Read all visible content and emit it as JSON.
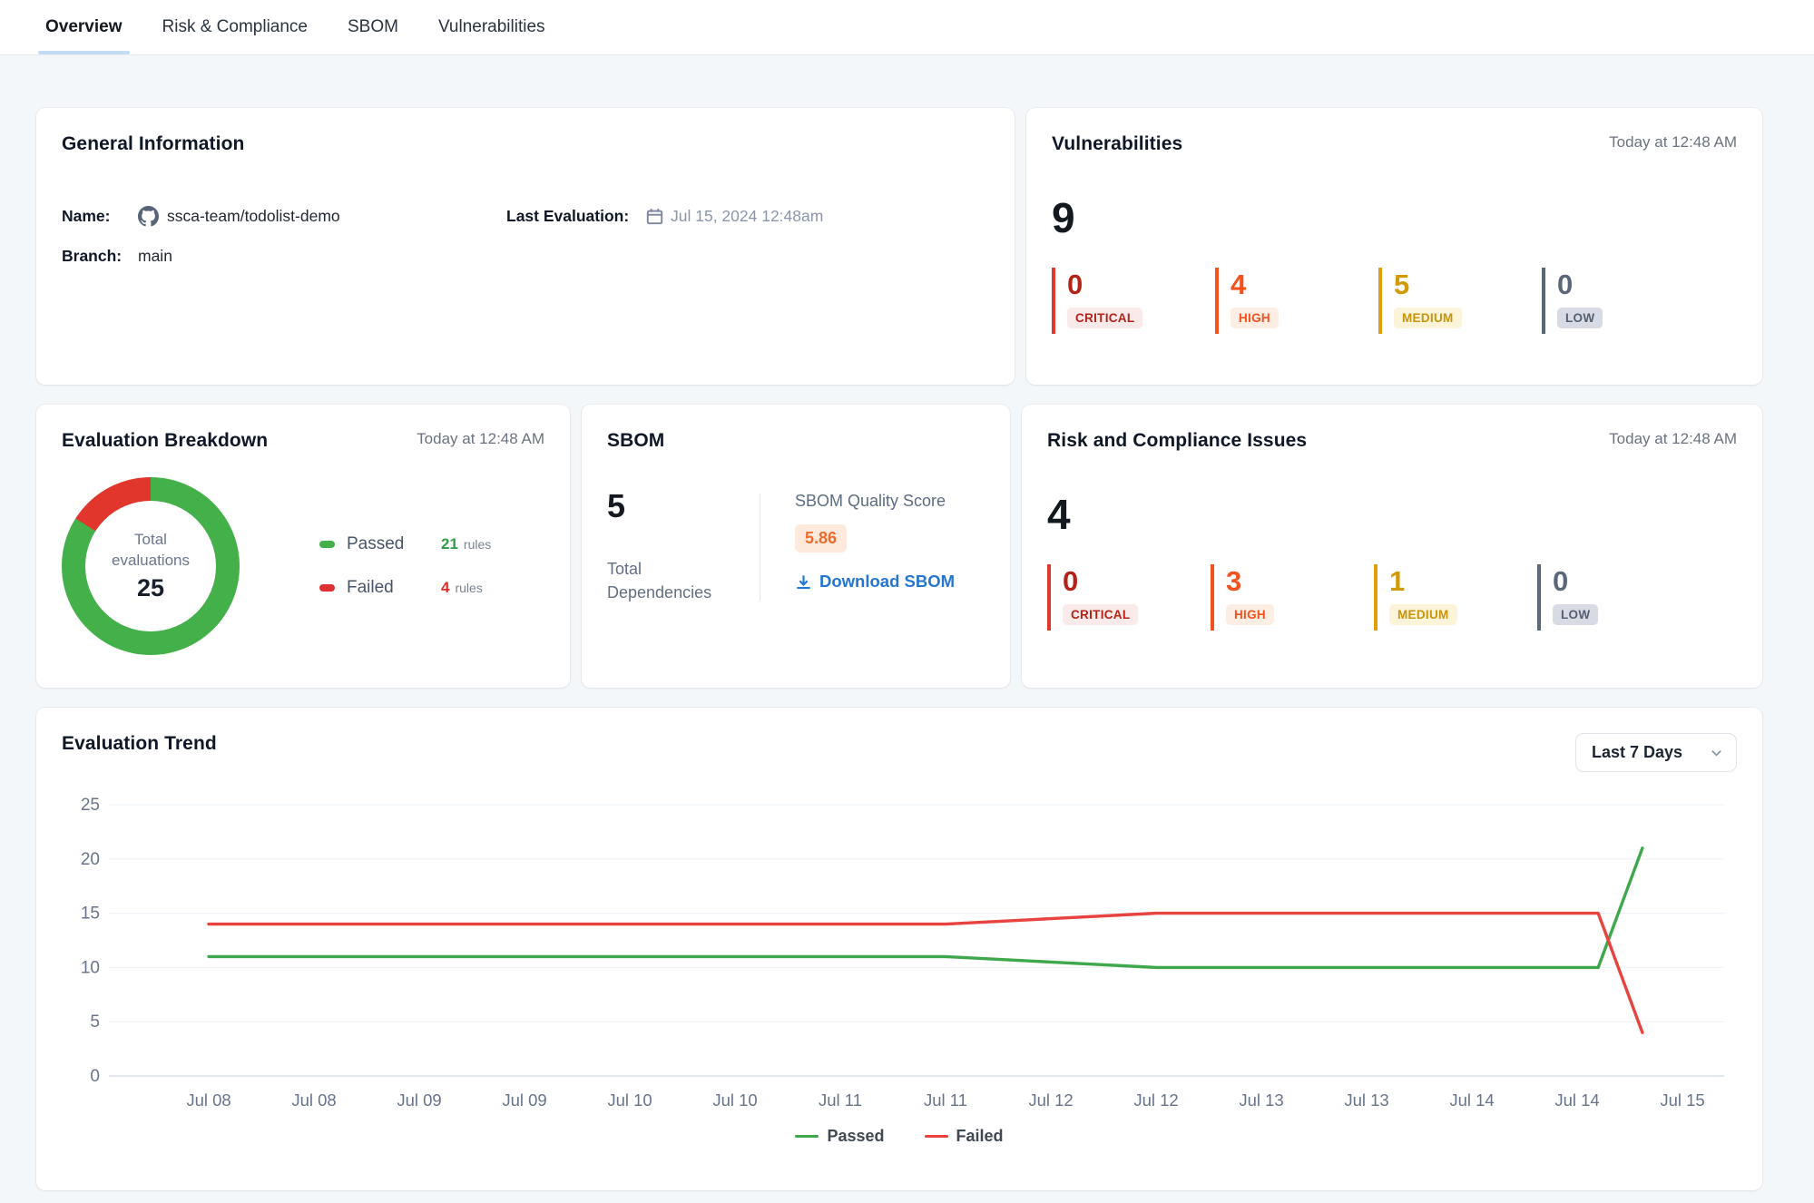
{
  "tabs": {
    "items": [
      {
        "label": "Overview",
        "active": true
      },
      {
        "label": "Risk & Compliance",
        "active": false
      },
      {
        "label": "SBOM",
        "active": false
      },
      {
        "label": "Vulnerabilities",
        "active": false
      }
    ]
  },
  "general_info": {
    "title": "General Information",
    "name_label": "Name:",
    "name_value": "ssca-team/todolist-demo",
    "last_eval_label": "Last Evaluation:",
    "last_eval_value": "Jul 15, 2024 12:48am",
    "branch_label": "Branch:",
    "branch_value": "main"
  },
  "vulnerabilities": {
    "title": "Vulnerabilities",
    "timestamp": "Today at 12:48 AM",
    "total": "9",
    "severities": [
      {
        "label": "CRITICAL",
        "count": "0"
      },
      {
        "label": "HIGH",
        "count": "4"
      },
      {
        "label": "MEDIUM",
        "count": "5"
      },
      {
        "label": "LOW",
        "count": "0"
      }
    ]
  },
  "evaluation_breakdown": {
    "title": "Evaluation Breakdown",
    "timestamp": "Today at 12:48 AM",
    "center_label_line1": "Total",
    "center_label_line2": "evaluations",
    "center_total": "25",
    "legend": [
      {
        "label": "Passed",
        "count": "21",
        "unit": "rules"
      },
      {
        "label": "Failed",
        "count": "4",
        "unit": "rules"
      }
    ]
  },
  "sbom": {
    "title": "SBOM",
    "total": "5",
    "total_label_line1": "Total",
    "total_label_line2": "Dependencies",
    "score_label": "SBOM Quality Score",
    "score": "5.86",
    "download_label": "Download SBOM"
  },
  "risk_compliance": {
    "title": "Risk and Compliance Issues",
    "timestamp": "Today at 12:48 AM",
    "total": "4",
    "severities": [
      {
        "label": "CRITICAL",
        "count": "0"
      },
      {
        "label": "HIGH",
        "count": "3"
      },
      {
        "label": "MEDIUM",
        "count": "1"
      },
      {
        "label": "LOW",
        "count": "0"
      }
    ]
  },
  "evaluation_trend": {
    "title": "Evaluation Trend",
    "range_selector": "Last 7 Days"
  },
  "chart_data": [
    {
      "type": "pie",
      "title": "Evaluation Breakdown",
      "center_label": "Total evaluations",
      "center_value": 25,
      "slices": [
        {
          "label": "Passed",
          "value": 21,
          "color": "#44b04a"
        },
        {
          "label": "Failed",
          "value": 4,
          "color": "#e0362c"
        }
      ],
      "donut": true,
      "start_angle": "top"
    },
    {
      "type": "line",
      "title": "Evaluation Trend",
      "categories": [
        "Jul 08",
        "Jul 08",
        "Jul 09",
        "Jul 09",
        "Jul 10",
        "Jul 10",
        "Jul 11",
        "Jul 11",
        "Jul 12",
        "Jul 12",
        "Jul 13",
        "Jul 13",
        "Jul 14",
        "Jul 14",
        "Jul 15"
      ],
      "ylim": [
        0,
        25
      ],
      "yticks": [
        0,
        5,
        10,
        15,
        20,
        25
      ],
      "grid": true,
      "legend_position": "bottom",
      "series": [
        {
          "name": "Passed",
          "color": "#3fa84c",
          "points": [
            [
              0,
              11
            ],
            [
              1,
              11
            ],
            [
              2,
              11
            ],
            [
              3,
              11
            ],
            [
              4,
              11
            ],
            [
              5,
              11
            ],
            [
              6,
              11
            ],
            [
              7,
              11
            ],
            [
              8,
              10.5
            ],
            [
              9,
              10
            ],
            [
              10,
              10
            ],
            [
              11,
              10
            ],
            [
              12,
              10
            ],
            [
              13.2,
              10
            ],
            [
              13.62,
              21
            ]
          ]
        },
        {
          "name": "Failed",
          "color": "#e8433f",
          "points": [
            [
              0,
              14
            ],
            [
              1,
              14
            ],
            [
              2,
              14
            ],
            [
              3,
              14
            ],
            [
              4,
              14
            ],
            [
              5,
              14
            ],
            [
              6,
              14
            ],
            [
              7,
              14
            ],
            [
              8,
              14.5
            ],
            [
              9,
              15
            ],
            [
              10,
              15
            ],
            [
              11,
              15
            ],
            [
              12,
              15
            ],
            [
              13.2,
              15
            ],
            [
              13.62,
              4
            ]
          ]
        }
      ]
    }
  ],
  "colors": {
    "critical": "#b42318",
    "high": "#f4511e",
    "medium": "#d29a07",
    "low": "#5b6679",
    "passed_green": "#3fa84c",
    "failed_red": "#e8433f",
    "link_blue": "#2476d2",
    "score_orange": "#ed6c2d",
    "active_tab_underline": "#c3dcf3"
  }
}
